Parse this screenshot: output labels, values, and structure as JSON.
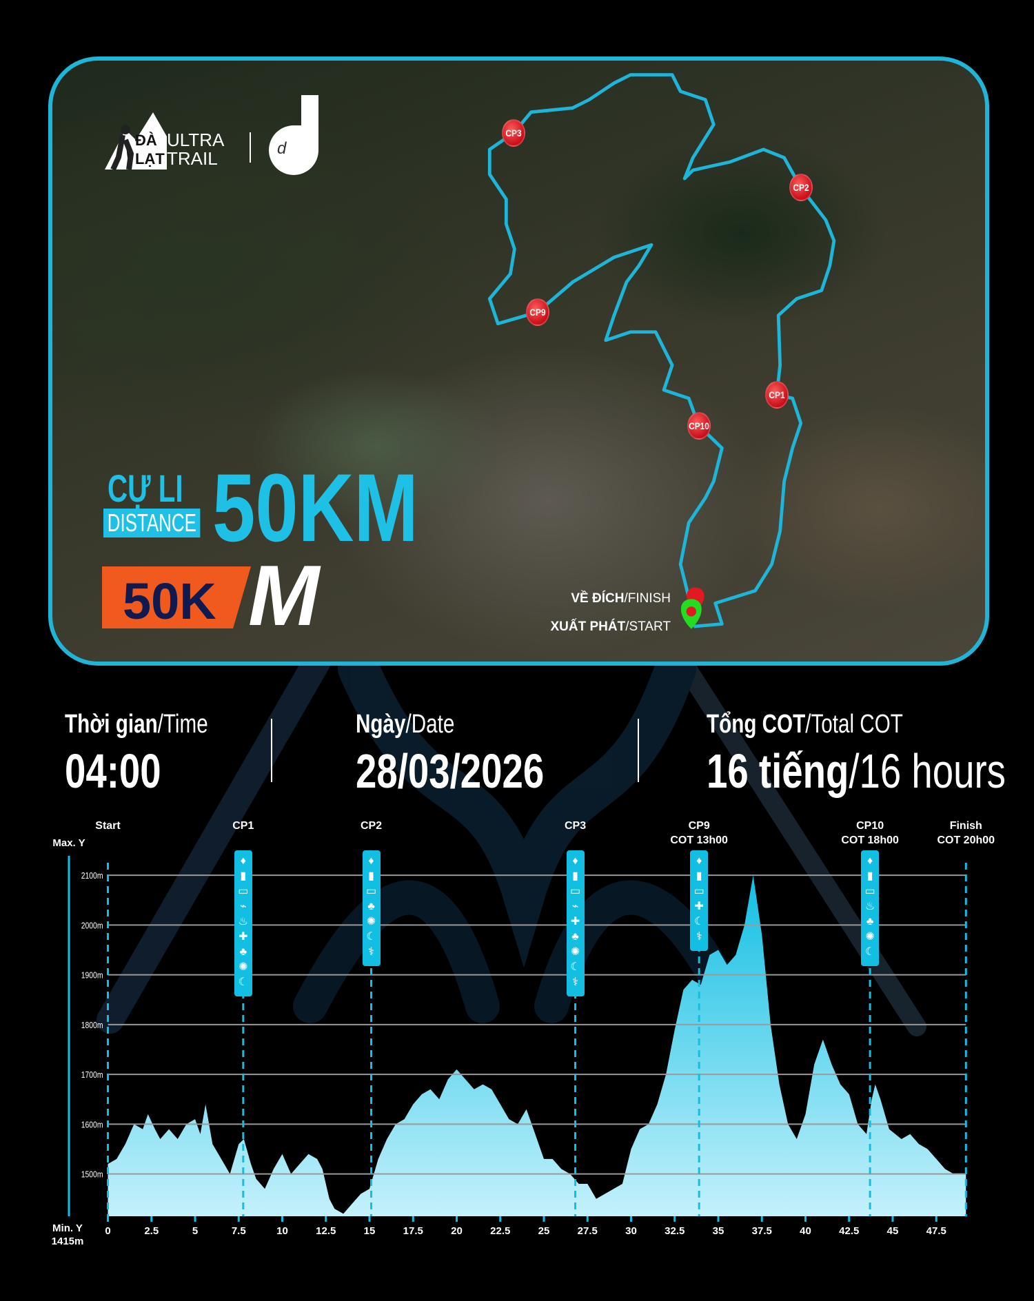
{
  "brand": {
    "logo_text_1": "ĐÀ LẠT",
    "logo_text_2": "ULTRA TRAIL",
    "partner_logo": "d"
  },
  "distance": {
    "vn_label": "CỰ LI",
    "en_label": "DISTANCE",
    "value": "50KM",
    "badge": "50K",
    "badge_logo": "M"
  },
  "map": {
    "checkpoints": [
      "CP3",
      "CP2",
      "CP9",
      "CP1",
      "CP10"
    ],
    "finish_vn": "VỀ ĐÍCH",
    "finish_en": "/FINISH",
    "start_vn": "XUẤT PHÁT",
    "start_en": "/START",
    "route_color": "#1fb5d8",
    "checkpoint_color": "#d01a20",
    "start_color": "#22dd22"
  },
  "info": {
    "time": {
      "label_vn": "Thời gian",
      "label_en": "/Time",
      "value": "04:00"
    },
    "date": {
      "label_vn": "Ngày",
      "label_en": "/Date",
      "value": "28/03/2026"
    },
    "cot": {
      "label_vn": "Tổng COT",
      "label_en": "/Total COT",
      "value_vn": "16 tiếng",
      "value_en": "/16 hours"
    }
  },
  "chart_data": {
    "type": "area",
    "xlabel": "",
    "ylabel": "",
    "y_max_label": "Max. Y",
    "y_min_label": "Min. Y",
    "y_min_value": "1415m",
    "xlim": [
      0,
      49.2
    ],
    "ylim": [
      1415,
      2100
    ],
    "x_ticks": [
      "0",
      "2.5",
      "5",
      "7.5",
      "10",
      "12.5",
      "15",
      "17.5",
      "20",
      "22.5",
      "25",
      "27.5",
      "30",
      "32.5",
      "35",
      "37.5",
      "40",
      "42.5",
      "45",
      "47.5"
    ],
    "y_ticks": [
      "1500m",
      "1600m",
      "1700m",
      "1800m",
      "1900m",
      "2000m",
      "2100m"
    ],
    "grid": true,
    "fill_color": "#12bfe3",
    "points": [
      [
        0,
        1520
      ],
      [
        0.5,
        1530
      ],
      [
        1,
        1560
      ],
      [
        1.5,
        1600
      ],
      [
        2,
        1590
      ],
      [
        2.3,
        1620
      ],
      [
        2.7,
        1590
      ],
      [
        3,
        1570
      ],
      [
        3.5,
        1590
      ],
      [
        4,
        1570
      ],
      [
        4.5,
        1600
      ],
      [
        5,
        1610
      ],
      [
        5.3,
        1580
      ],
      [
        5.6,
        1640
      ],
      [
        6,
        1560
      ],
      [
        6.5,
        1530
      ],
      [
        7,
        1500
      ],
      [
        7.5,
        1560
      ],
      [
        7.8,
        1570
      ],
      [
        8.2,
        1520
      ],
      [
        8.5,
        1490
      ],
      [
        9,
        1470
      ],
      [
        9.5,
        1510
      ],
      [
        10,
        1540
      ],
      [
        10.5,
        1500
      ],
      [
        11,
        1520
      ],
      [
        11.5,
        1540
      ],
      [
        12,
        1530
      ],
      [
        12.3,
        1510
      ],
      [
        12.7,
        1450
      ],
      [
        13,
        1430
      ],
      [
        13.5,
        1420
      ],
      [
        14,
        1440
      ],
      [
        14.5,
        1460
      ],
      [
        15,
        1470
      ],
      [
        15.5,
        1530
      ],
      [
        16,
        1570
      ],
      [
        16.5,
        1600
      ],
      [
        17,
        1610
      ],
      [
        17.5,
        1640
      ],
      [
        18,
        1660
      ],
      [
        18.5,
        1670
      ],
      [
        19,
        1650
      ],
      [
        19.5,
        1690
      ],
      [
        20,
        1710
      ],
      [
        20.5,
        1690
      ],
      [
        21,
        1670
      ],
      [
        21.5,
        1680
      ],
      [
        22,
        1670
      ],
      [
        22.5,
        1640
      ],
      [
        23,
        1610
      ],
      [
        23.5,
        1600
      ],
      [
        24,
        1630
      ],
      [
        24.5,
        1580
      ],
      [
        25,
        1530
      ],
      [
        25.5,
        1530
      ],
      [
        26,
        1510
      ],
      [
        26.5,
        1500
      ],
      [
        27,
        1480
      ],
      [
        27.5,
        1480
      ],
      [
        28,
        1450
      ],
      [
        28.5,
        1460
      ],
      [
        29,
        1470
      ],
      [
        29.5,
        1480
      ],
      [
        30,
        1550
      ],
      [
        30.5,
        1590
      ],
      [
        31,
        1600
      ],
      [
        31.5,
        1640
      ],
      [
        32,
        1700
      ],
      [
        32.5,
        1790
      ],
      [
        33,
        1870
      ],
      [
        33.5,
        1890
      ],
      [
        34,
        1880
      ],
      [
        34.5,
        1940
      ],
      [
        35,
        1950
      ],
      [
        35.5,
        1920
      ],
      [
        36,
        1940
      ],
      [
        36.5,
        2000
      ],
      [
        37,
        2100
      ],
      [
        37.5,
        1980
      ],
      [
        38,
        1800
      ],
      [
        38.5,
        1680
      ],
      [
        39,
        1600
      ],
      [
        39.5,
        1570
      ],
      [
        40,
        1620
      ],
      [
        40.5,
        1720
      ],
      [
        41,
        1770
      ],
      [
        41.5,
        1720
      ],
      [
        42,
        1680
      ],
      [
        42.5,
        1660
      ],
      [
        43,
        1600
      ],
      [
        43.5,
        1580
      ],
      [
        43.8,
        1650
      ],
      [
        44,
        1680
      ],
      [
        44.3,
        1650
      ],
      [
        44.8,
        1590
      ],
      [
        45.5,
        1570
      ],
      [
        46,
        1580
      ],
      [
        46.5,
        1560
      ],
      [
        47,
        1550
      ],
      [
        47.5,
        1530
      ],
      [
        48,
        1510
      ],
      [
        48.5,
        1500
      ],
      [
        49.2,
        1500
      ]
    ],
    "stations": [
      {
        "name": "Start",
        "cot": "",
        "km": 0,
        "icons": []
      },
      {
        "name": "CP1",
        "cot": "",
        "km": 7.76,
        "icons": [
          "water",
          "electrolyte",
          "can",
          "battery",
          "noodle",
          "first-aid",
          "meat",
          "cookie",
          "banana"
        ]
      },
      {
        "name": "CP2",
        "cot": "",
        "km": 15.1,
        "icons": [
          "water",
          "electrolyte",
          "can",
          "meat",
          "cookie",
          "banana",
          "medical-drip"
        ]
      },
      {
        "name": "CP3",
        "cot": "",
        "km": 26.8,
        "icons": [
          "water",
          "electrolyte",
          "can",
          "battery",
          "first-aid",
          "meat",
          "cookie",
          "banana",
          "medical-drip"
        ]
      },
      {
        "name": "CP9",
        "cot": "COT 13h00",
        "km": 33.9,
        "icons": [
          "water",
          "electrolyte",
          "can",
          "first-aid",
          "banana",
          "medical-drip"
        ]
      },
      {
        "name": "CP10",
        "cot": "COT 18h00",
        "km": 43.7,
        "icons": [
          "water",
          "electrolyte",
          "can",
          "noodle",
          "meat",
          "cookie",
          "banana"
        ]
      },
      {
        "name": "Finish",
        "cot": "COT 20h00",
        "km": 49.2,
        "icons": []
      }
    ]
  }
}
